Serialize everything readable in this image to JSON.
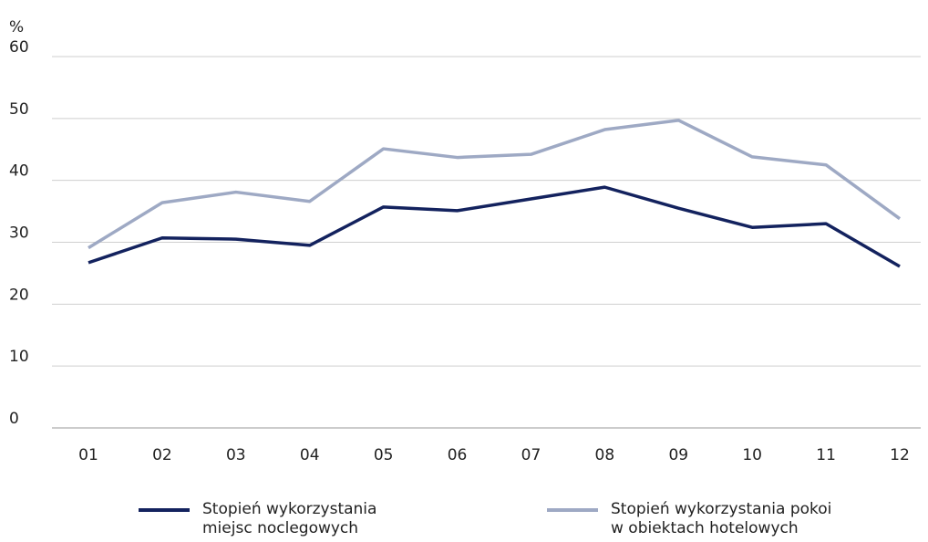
{
  "chart_data": {
    "type": "line",
    "y_label": "%",
    "categories": [
      "01",
      "02",
      "03",
      "04",
      "05",
      "06",
      "07",
      "08",
      "09",
      "10",
      "11",
      "12"
    ],
    "series": [
      {
        "name": "Stopień wykorzystania miejsc noclegowych",
        "color": "#13225e",
        "values": [
          26.7,
          30.7,
          30.5,
          29.5,
          35.7,
          35.1,
          37.0,
          38.9,
          35.5,
          32.4,
          33.0,
          26.1
        ]
      },
      {
        "name": "Stopień wykorzystania pokoi w obiektach hotelowych",
        "color": "#9ea9c4",
        "values": [
          29.1,
          36.4,
          38.1,
          36.6,
          45.1,
          43.7,
          44.2,
          48.2,
          49.7,
          43.8,
          42.5,
          33.8
        ]
      }
    ],
    "ylim": [
      0,
      60
    ],
    "yticks": [
      0,
      10,
      20,
      30,
      40,
      50,
      60
    ],
    "grid": true
  }
}
